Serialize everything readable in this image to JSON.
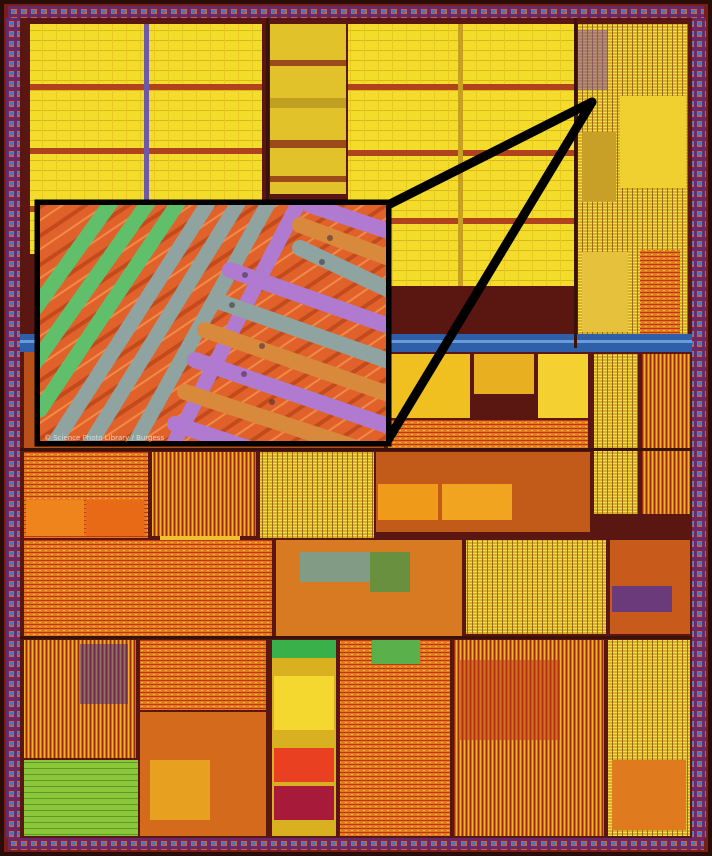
{
  "image": {
    "subject": "die-micrograph",
    "colors": {
      "background": "#2a0d08",
      "cache_yellow": "#f4dc2a",
      "bus_blue": "#2f5fa8",
      "logic_orange": "#e07a1e",
      "logic_red": "#c4321c",
      "green_block": "#8cc63a",
      "inset_green": "#5fbf6a",
      "inset_gray": "#8fa4a0",
      "inset_violet": "#b07ad0",
      "inset_orange": "#d8893c",
      "inset_substrate": "#e0622a",
      "callout_line": "#000000"
    }
  },
  "inset": {
    "credit_text": "© Science Photo Library / Burgess"
  }
}
